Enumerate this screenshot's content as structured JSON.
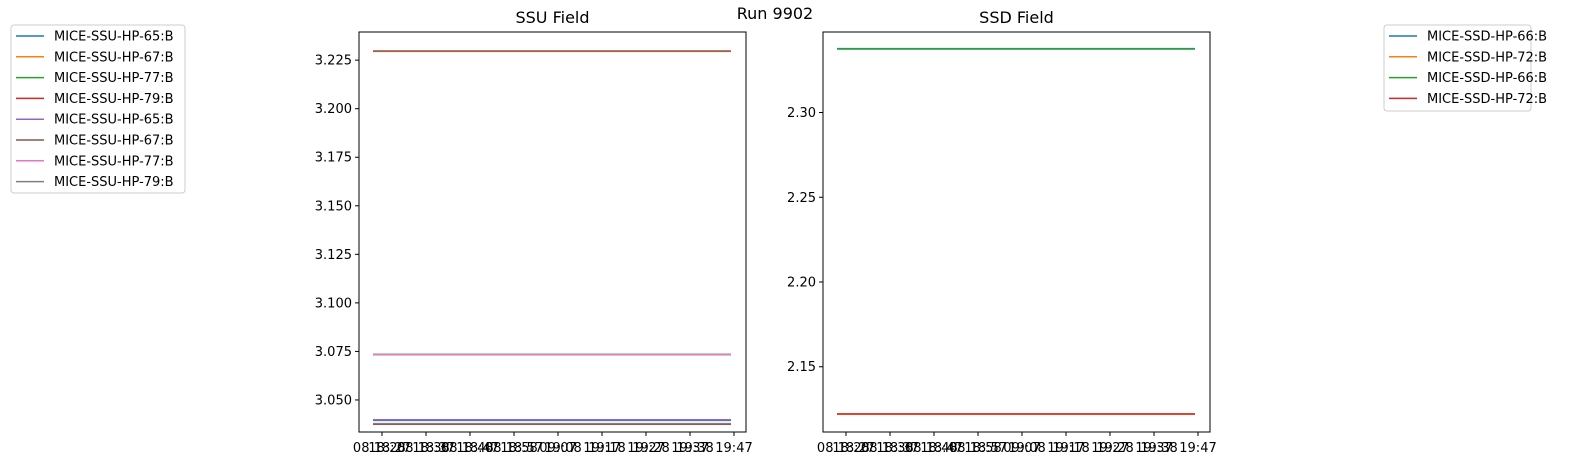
{
  "suptitle": "Run 9902",
  "chart_data": [
    {
      "type": "line",
      "title": "SSU Field",
      "xlabel": "",
      "ylabel": "",
      "x_ticks": [
        "08 18:27",
        "08 18:37",
        "08 18:47",
        "08 18:57",
        "09:07",
        "19:17",
        "19:27",
        "19:37",
        "19:47"
      ],
      "x_tick_overlaps": [
        "18:28",
        "18:38",
        "18:48",
        "18:58",
        "19:08",
        "19:18",
        "19:28",
        "19:38",
        ""
      ],
      "y_ticks": [
        3.05,
        3.075,
        3.1,
        3.125,
        3.15,
        3.175,
        3.2,
        3.225
      ],
      "y_tick_labels": [
        "3.050",
        "3.075",
        "3.100",
        "3.125",
        "3.150",
        "3.175",
        "3.200",
        "3.225"
      ],
      "ylim": [
        3.0335,
        3.2395
      ],
      "x_range": [
        0,
        1
      ],
      "legend_position": "outside-left",
      "series": [
        {
          "name": "MICE-SSU-HP-65:B",
          "color": "#1f77b4",
          "values": [
            3.0395,
            3.0395
          ]
        },
        {
          "name": "MICE-SSU-HP-67:B",
          "color": "#ff7f0e",
          "values": [
            3.2295,
            3.2295
          ]
        },
        {
          "name": "MICE-SSU-HP-77:B",
          "color": "#2ca02c",
          "values": [
            3.0735,
            3.0735
          ]
        },
        {
          "name": "MICE-SSU-HP-79:B",
          "color": "#d62728",
          "values": [
            3.0375,
            3.0375
          ]
        },
        {
          "name": "MICE-SSU-HP-65:B",
          "color": "#9467bd",
          "values": [
            3.0398,
            3.0398
          ]
        },
        {
          "name": "MICE-SSU-HP-67:B",
          "color": "#8c564b",
          "values": [
            3.2297,
            3.2297
          ]
        },
        {
          "name": "MICE-SSU-HP-77:B",
          "color": "#e377c2",
          "values": [
            3.0733,
            3.0733
          ]
        },
        {
          "name": "MICE-SSU-HP-79:B",
          "color": "#7f7f7f",
          "values": [
            3.0378,
            3.0378
          ]
        }
      ]
    },
    {
      "type": "line",
      "title": "SSD Field",
      "xlabel": "",
      "ylabel": "",
      "x_ticks": [
        "08 18:27",
        "08 18:37",
        "08 18:47",
        "08 18:57",
        "09:07",
        "19:17",
        "19:27",
        "19:37",
        "19:47"
      ],
      "x_tick_overlaps": [
        "18:28",
        "18:38",
        "18:48",
        "18:58",
        "19:08",
        "19:18",
        "19:28",
        "19:38",
        ""
      ],
      "y_ticks": [
        2.15,
        2.2,
        2.25,
        2.3
      ],
      "y_tick_labels": [
        "2.15",
        "2.20",
        "2.25",
        "2.30"
      ],
      "ylim": [
        2.1115,
        2.3475
      ],
      "x_range": [
        0,
        1
      ],
      "legend_position": "outside-right",
      "series": [
        {
          "name": "MICE-SSD-HP-66:B",
          "color": "#1f77b4",
          "values": [
            2.3375,
            2.3375
          ]
        },
        {
          "name": "MICE-SSD-HP-72:B",
          "color": "#ff7f0e",
          "values": [
            2.122,
            2.122
          ]
        },
        {
          "name": "MICE-SSD-HP-66:B",
          "color": "#2ca02c",
          "values": [
            2.3377,
            2.3377
          ]
        },
        {
          "name": "MICE-SSD-HP-72:B",
          "color": "#d62728",
          "values": [
            2.1222,
            2.1222
          ]
        }
      ]
    }
  ]
}
